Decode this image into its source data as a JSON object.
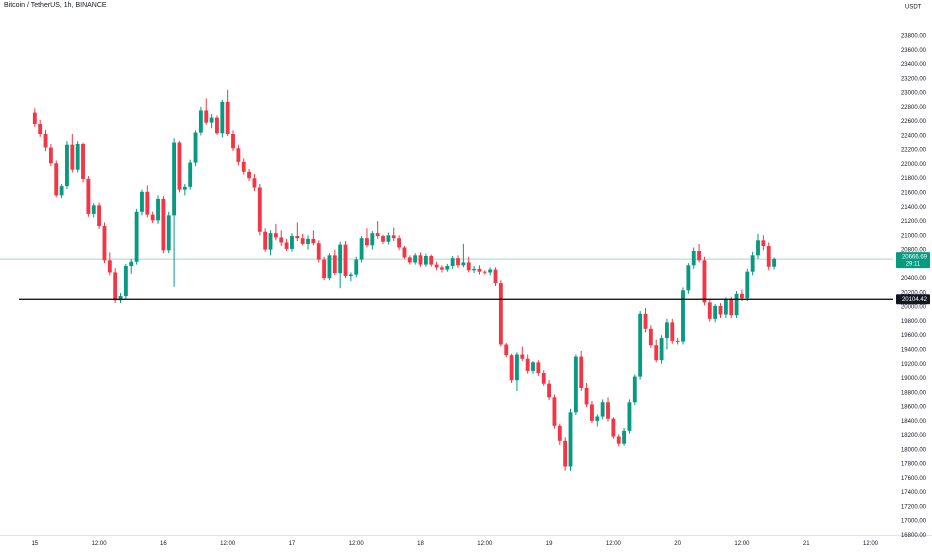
{
  "header": {
    "symbol_title": "Bitcoin / TetherUS, 1h, BINANCE"
  },
  "colors": {
    "up": "#089981",
    "down": "#f23645",
    "last_price_line": "#9fd9c9",
    "support_line": "#000000"
  },
  "chart_data": {
    "type": "candlestick",
    "title": "Bitcoin / TetherUS, 1h, BINANCE",
    "y_axis_unit": "USDT",
    "ylim": [
      16800,
      24200
    ],
    "y_ticks": [
      16800,
      17000,
      17200,
      17400,
      17600,
      17800,
      18000,
      18200,
      18400,
      18600,
      18800,
      19000,
      19200,
      19400,
      19600,
      19800,
      20000,
      20200,
      20400,
      20600,
      20800,
      21000,
      21200,
      21400,
      21600,
      21800,
      22000,
      22200,
      22400,
      22600,
      22800,
      23000,
      23200,
      23400,
      23600,
      23800
    ],
    "y_tick_labels": [
      "16800.00",
      "17000.00",
      "17200.00",
      "17400.00",
      "17600.00",
      "17800.00",
      "18000.00",
      "18200.00",
      "18400.00",
      "18600.00",
      "18800.00",
      "19000.00",
      "19200.00",
      "19400.00",
      "19600.00",
      "19800.00",
      "20000.00",
      "20200.00",
      "20400.00",
      "20600.00",
      "20800.00",
      "21000.00",
      "21200.00",
      "21400.00",
      "21600.00",
      "21800.00",
      "22000.00",
      "22200.00",
      "22400.00",
      "22600.00",
      "22800.00",
      "23000.00",
      "23200.00",
      "23400.00",
      "23600.00",
      "23800.00"
    ],
    "x_ticks": [
      {
        "index": 0,
        "label": "15"
      },
      {
        "index": 12,
        "label": "12:00"
      },
      {
        "index": 24,
        "label": "16"
      },
      {
        "index": 36,
        "label": "12:00"
      },
      {
        "index": 48,
        "label": "17"
      },
      {
        "index": 60,
        "label": "12:00"
      },
      {
        "index": 72,
        "label": "18"
      },
      {
        "index": 84,
        "label": "12:00"
      },
      {
        "index": 96,
        "label": "19"
      },
      {
        "index": 108,
        "label": "12:00"
      },
      {
        "index": 120,
        "label": "20"
      },
      {
        "index": 132,
        "label": "12:00"
      },
      {
        "index": 144,
        "label": "21"
      },
      {
        "index": 156,
        "label": "12:00"
      }
    ],
    "x_index_range": [
      -6.5,
      160.2
    ],
    "last_price": {
      "value": 20666.69,
      "label": "20666.69",
      "countdown": "29:11"
    },
    "horizontal_line": {
      "value": 20104.42,
      "label": "20104.42"
    },
    "candles": [
      [
        22720,
        22780,
        22520,
        22560
      ],
      [
        22560,
        22620,
        22380,
        22420
      ],
      [
        22420,
        22480,
        22180,
        22230
      ],
      [
        22230,
        22280,
        21970,
        22010
      ],
      [
        22010,
        22050,
        21530,
        21560
      ],
      [
        21560,
        21720,
        21520,
        21690
      ],
      [
        21690,
        22320,
        21650,
        22270
      ],
      [
        22270,
        22420,
        21880,
        21920
      ],
      [
        21920,
        22320,
        21880,
        22280
      ],
      [
        22280,
        22300,
        21740,
        21790
      ],
      [
        21790,
        21830,
        21260,
        21300
      ],
      [
        21300,
        21450,
        21250,
        21420
      ],
      [
        21420,
        21460,
        21090,
        21130
      ],
      [
        21130,
        21180,
        20610,
        20650
      ],
      [
        20650,
        20760,
        20440,
        20480
      ],
      [
        20480,
        20540,
        20050,
        20090
      ],
      [
        20090,
        20190,
        20050,
        20150
      ],
      [
        20150,
        20600,
        20110,
        20570
      ],
      [
        20570,
        20670,
        20460,
        20630
      ],
      [
        20630,
        21370,
        20590,
        21330
      ],
      [
        21330,
        21640,
        21280,
        21610
      ],
      [
        21610,
        21700,
        21250,
        21290
      ],
      [
        21290,
        21330,
        21170,
        21210
      ],
      [
        21210,
        21560,
        21160,
        21510
      ],
      [
        21510,
        21550,
        20750,
        20790
      ],
      [
        20790,
        21330,
        20750,
        21280
      ],
      [
        21280,
        22360,
        20280,
        22300
      ],
      [
        22300,
        22320,
        21600,
        21640
      ],
      [
        21640,
        21720,
        21560,
        21680
      ],
      [
        21680,
        22060,
        21640,
        22020
      ],
      [
        22020,
        22470,
        21970,
        22440
      ],
      [
        22440,
        22800,
        22400,
        22750
      ],
      [
        22750,
        22920,
        22550,
        22580
      ],
      [
        22580,
        22700,
        22500,
        22650
      ],
      [
        22650,
        22680,
        22410,
        22430
      ],
      [
        22430,
        22900,
        22370,
        22870
      ],
      [
        22870,
        23040,
        22390,
        22420
      ],
      [
        22420,
        22470,
        22180,
        22220
      ],
      [
        22220,
        22270,
        21980,
        22030
      ],
      [
        22030,
        22080,
        21850,
        21890
      ],
      [
        21890,
        21930,
        21760,
        21800
      ],
      [
        21800,
        21860,
        21620,
        21670
      ],
      [
        21670,
        21720,
        21000,
        21050
      ],
      [
        21050,
        21100,
        20770,
        20800
      ],
      [
        20800,
        21070,
        20720,
        21030
      ],
      [
        21030,
        21160,
        20930,
        20970
      ],
      [
        20970,
        21070,
        20850,
        20900
      ],
      [
        20900,
        20950,
        20780,
        20810
      ],
      [
        20810,
        21030,
        20770,
        20990
      ],
      [
        20990,
        21180,
        20920,
        20960
      ],
      [
        20960,
        21020,
        20860,
        20880
      ],
      [
        20880,
        21000,
        20800,
        20950
      ],
      [
        20950,
        21070,
        20860,
        20890
      ],
      [
        20890,
        20930,
        20620,
        20660
      ],
      [
        20660,
        20700,
        20370,
        20400
      ],
      [
        20400,
        20750,
        20370,
        20720
      ],
      [
        20720,
        20800,
        20440,
        20470
      ],
      [
        20470,
        20910,
        20260,
        20870
      ],
      [
        20870,
        20920,
        20400,
        20430
      ],
      [
        20430,
        20480,
        20360,
        20450
      ],
      [
        20450,
        20700,
        20410,
        20660
      ],
      [
        20660,
        20990,
        20620,
        20960
      ],
      [
        20960,
        21100,
        20830,
        20860
      ],
      [
        20860,
        21060,
        20800,
        21030
      ],
      [
        21030,
        21200,
        20950,
        20990
      ],
      [
        20990,
        21010,
        20880,
        20910
      ],
      [
        20910,
        21040,
        20870,
        21000
      ],
      [
        21000,
        21110,
        20920,
        20960
      ],
      [
        20960,
        21000,
        20790,
        20830
      ],
      [
        20830,
        20850,
        20670,
        20690
      ],
      [
        20690,
        20720,
        20590,
        20620
      ],
      [
        20620,
        20750,
        20590,
        20720
      ],
      [
        20720,
        20760,
        20560,
        20590
      ],
      [
        20590,
        20740,
        20560,
        20710
      ],
      [
        20710,
        20730,
        20560,
        20590
      ],
      [
        20590,
        20630,
        20510,
        20550
      ],
      [
        20550,
        20580,
        20480,
        20520
      ],
      [
        20520,
        20600,
        20490,
        20570
      ],
      [
        20570,
        20710,
        20530,
        20680
      ],
      [
        20680,
        20720,
        20540,
        20580
      ],
      [
        20580,
        20880,
        20550,
        20620
      ],
      [
        20620,
        20700,
        20480,
        20510
      ],
      [
        20510,
        20570,
        20470,
        20530
      ],
      [
        20530,
        20580,
        20450,
        20490
      ],
      [
        20490,
        20510,
        20450,
        20480
      ],
      [
        20480,
        20550,
        20440,
        20520
      ],
      [
        20520,
        20550,
        20290,
        20330
      ],
      [
        20330,
        20370,
        19440,
        19470
      ],
      [
        19470,
        19490,
        19290,
        19320
      ],
      [
        19320,
        19340,
        18930,
        18970
      ],
      [
        18970,
        19360,
        18820,
        19330
      ],
      [
        19330,
        19440,
        19240,
        19270
      ],
      [
        19270,
        19330,
        19060,
        19100
      ],
      [
        19100,
        19240,
        19060,
        19220
      ],
      [
        19220,
        19250,
        19030,
        19070
      ],
      [
        19070,
        19110,
        18890,
        18920
      ],
      [
        18920,
        18970,
        18690,
        18730
      ],
      [
        18730,
        18770,
        18290,
        18330
      ],
      [
        18330,
        18360,
        18060,
        18120
      ],
      [
        18120,
        18170,
        17700,
        17760
      ],
      [
        17760,
        18570,
        17700,
        18520
      ],
      [
        18520,
        19330,
        18480,
        19300
      ],
      [
        19300,
        19380,
        18820,
        18860
      ],
      [
        18860,
        18930,
        18590,
        18630
      ],
      [
        18630,
        18680,
        18370,
        18400
      ],
      [
        18400,
        18490,
        18320,
        18460
      ],
      [
        18460,
        18700,
        18420,
        18660
      ],
      [
        18660,
        18730,
        18390,
        18430
      ],
      [
        18430,
        18450,
        18150,
        18180
      ],
      [
        18180,
        18210,
        18040,
        18080
      ],
      [
        18080,
        18300,
        18050,
        18260
      ],
      [
        18260,
        18700,
        18220,
        18660
      ],
      [
        18660,
        19050,
        18620,
        19020
      ],
      [
        19020,
        19940,
        18980,
        19900
      ],
      [
        19900,
        19980,
        19640,
        19690
      ],
      [
        19690,
        19740,
        19420,
        19460
      ],
      [
        19460,
        19540,
        19220,
        19250
      ],
      [
        19250,
        19600,
        19200,
        19560
      ],
      [
        19560,
        19830,
        19400,
        19780
      ],
      [
        19780,
        19830,
        19480,
        19520
      ],
      [
        19520,
        19560,
        19470,
        19510
      ],
      [
        19510,
        20270,
        19470,
        20230
      ],
      [
        20230,
        20610,
        20180,
        20580
      ],
      [
        20580,
        20830,
        20530,
        20780
      ],
      [
        20780,
        20880,
        20620,
        20650
      ],
      [
        20650,
        20700,
        20020,
        20060
      ],
      [
        20060,
        20100,
        19790,
        19830
      ],
      [
        19830,
        20040,
        19780,
        20010
      ],
      [
        20010,
        20050,
        19840,
        19890
      ],
      [
        19890,
        20130,
        19840,
        20100
      ],
      [
        20100,
        20140,
        19840,
        19880
      ],
      [
        19880,
        20220,
        19840,
        20180
      ],
      [
        20180,
        20240,
        20080,
        20120
      ],
      [
        20120,
        20530,
        20080,
        20490
      ],
      [
        20490,
        20770,
        20440,
        20720
      ],
      [
        20720,
        21020,
        20670,
        20930
      ],
      [
        20930,
        21000,
        20790,
        20850
      ],
      [
        20850,
        20900,
        20510,
        20560
      ],
      [
        20560,
        20690,
        20520,
        20670
      ]
    ]
  }
}
